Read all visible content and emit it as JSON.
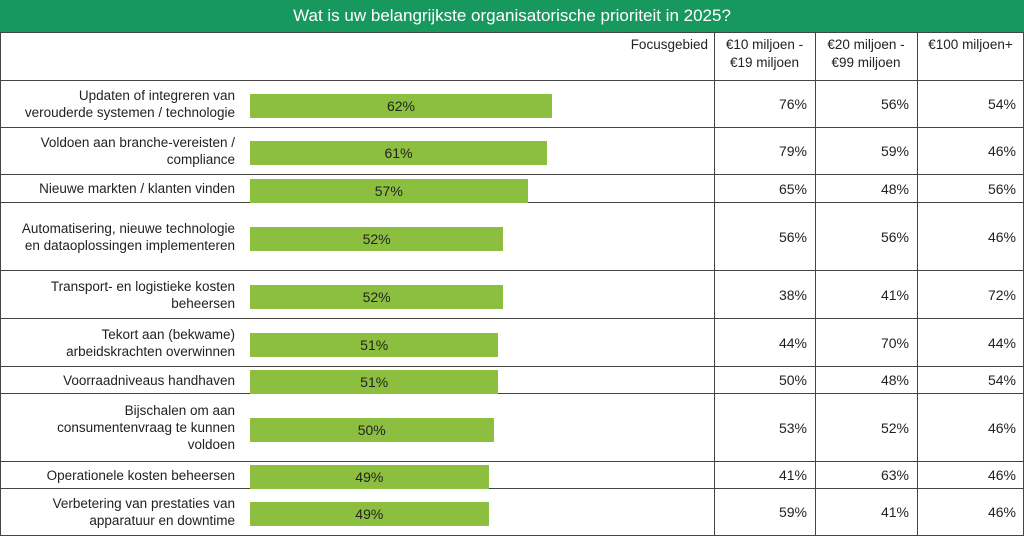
{
  "chart_data": {
    "type": "bar",
    "title": "Wat is uw belangrijkste organisatorische prioriteit in 2025?",
    "categories": [
      "Updaten of integreren van verouderde systemen / technologie",
      "Voldoen aan branche-vereisten / compliance",
      "Nieuwe markten / klanten vinden",
      "Automatisering, nieuwe technologie en dataoplossingen implementeren",
      "Transport- en logistieke kosten beheersen",
      "Tekort aan (bekwame) arbeidskrachten overwinnen",
      "Voorraadniveaus handhaven",
      "Bijschalen om aan consumentenvraag te kunnen voldoen",
      "Operationele kosten beheersen",
      "Verbetering van prestaties van apparatuur en downtime"
    ],
    "series": [
      {
        "name": "Focusgebied",
        "color": "#8cbf3f",
        "values": [
          62,
          61,
          57,
          52,
          52,
          51,
          51,
          50,
          49,
          49
        ],
        "value_labels": [
          "62%",
          "61%",
          "57%",
          "52%",
          "52%",
          "51%",
          "51%",
          "50%",
          "49%",
          "49%"
        ]
      },
      {
        "name": "€10 miljoen - €19 miljoen",
        "values": [
          76,
          79,
          65,
          56,
          38,
          44,
          50,
          53,
          41,
          59
        ],
        "value_labels": [
          "76%",
          "79%",
          "65%",
          "56%",
          "38%",
          "44%",
          "50%",
          "53%",
          "41%",
          "59%"
        ]
      },
      {
        "name": "€20 miljoen - €99 miljoen",
        "values": [
          56,
          59,
          48,
          56,
          41,
          70,
          48,
          52,
          63,
          41
        ],
        "value_labels": [
          "56%",
          "59%",
          "48%",
          "56%",
          "41%",
          "70%",
          "48%",
          "52%",
          "63%",
          "41%"
        ]
      },
      {
        "name": "€100 miljoen+",
        "values": [
          54,
          46,
          56,
          46,
          72,
          44,
          54,
          46,
          46,
          46
        ],
        "value_labels": [
          "54%",
          "46%",
          "56%",
          "46%",
          "72%",
          "44%",
          "54%",
          "46%",
          "46%",
          "46%"
        ]
      }
    ]
  }
}
